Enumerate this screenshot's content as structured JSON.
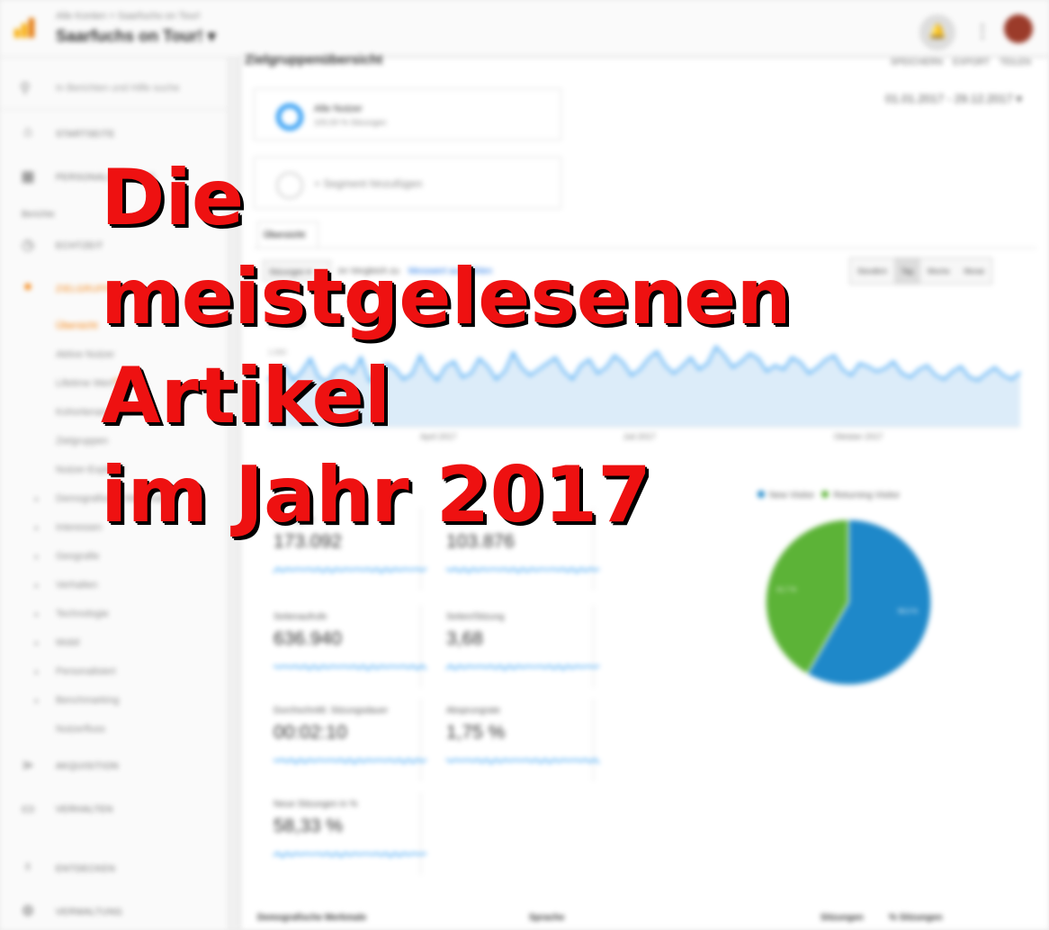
{
  "overlay": {
    "line1": "Die",
    "line2": "meistgelesenen",
    "line3": "Artikel",
    "line4": "im Jahr 2017"
  },
  "header": {
    "breadcrumb": "Alle Konten > Saarfuchs on Tour!",
    "account": "Saarfuchs on Tour!",
    "page_title": "Zielgruppenübersicht",
    "actions": [
      "SPEICHERN",
      "EXPORT",
      "TEILEN"
    ]
  },
  "sidebar": {
    "search_placeholder": "In Berichten und Hilfe suche",
    "home": "STARTSEITE",
    "custom": "PERSONALISIERUNG",
    "reports_label": "Berichte",
    "realtime": "ECHTZEIT",
    "audience": "ZIELGRUPPE",
    "audience_items": [
      {
        "label": "Übersicht",
        "active": true,
        "beta": ""
      },
      {
        "label": "Aktive Nutzer",
        "active": false,
        "beta": ""
      },
      {
        "label": "Lifetime Wert",
        "active": false,
        "beta": "BETA"
      },
      {
        "label": "Kohortenanalyse",
        "active": false,
        "beta": "BETA"
      },
      {
        "label": "Zielgruppen",
        "active": false,
        "beta": ""
      },
      {
        "label": "Nutzer-Explorer",
        "active": false,
        "beta": ""
      }
    ],
    "audience_groups": [
      "Demografische Merkmale",
      "Interessen",
      "Geografie",
      "Verhalten",
      "Technologie",
      "Mobil",
      "Personalisiert",
      "Benchmarking"
    ],
    "users_flow": "Nutzerfluss",
    "acquisition": "AKQUISITION",
    "behavior": "VERHALTEN",
    "discover": "ENTDECKEN",
    "admin": "VERWALTUNG"
  },
  "segments": {
    "all_users": "Alle Nutzer",
    "all_users_sub": "100,00 % Sitzungen",
    "add": "+ Segment hinzufügen"
  },
  "date_range": "01.01.2017 - 29.12.2017",
  "tab_label": "Übersicht",
  "metric_select": "Sitzungen",
  "compare": {
    "text": "im Vergleich zu",
    "link": "Messwert auswählen"
  },
  "granularity": [
    {
      "label": "Stündlich",
      "on": false
    },
    {
      "label": "Tag",
      "on": true
    },
    {
      "label": "Woche",
      "on": false
    },
    {
      "label": "Monat",
      "on": false
    }
  ],
  "chart_data": {
    "type": "line",
    "legend": "Sitzungen",
    "y_ticks": [
      "1.000",
      "500"
    ],
    "x_ticks": [
      "April 2017",
      "Juli 2017",
      "Oktober 2017"
    ],
    "series_color": "#2196f3",
    "values": [
      480,
      520,
      610,
      470,
      560,
      690,
      500,
      450,
      580,
      620,
      540,
      700,
      460,
      510,
      640,
      590,
      480,
      530,
      720,
      560,
      470,
      610,
      660,
      500,
      540,
      690,
      610,
      480,
      560,
      750,
      600,
      520,
      580,
      640,
      700,
      560,
      480,
      620,
      680,
      540,
      600,
      720,
      650,
      520,
      580,
      690,
      760,
      620,
      540,
      610,
      700,
      580,
      640,
      810,
      720,
      600,
      660,
      740,
      690,
      560,
      620,
      580,
      700,
      650,
      540,
      600,
      680,
      720,
      580,
      520,
      640,
      610,
      560,
      590,
      660,
      540,
      500,
      580,
      620,
      520,
      480,
      560,
      610,
      500,
      470,
      540,
      600,
      520,
      480,
      550
    ]
  },
  "pie_legend": [
    {
      "label": "New Visitor",
      "color": "#1e88c9"
    },
    {
      "label": "Returning Visitor",
      "color": "#5cb337"
    }
  ],
  "pie": {
    "new_pct": 58.3,
    "returning_pct": 41.7,
    "new_label": "58,3 %",
    "returning_label": "41,7 %"
  },
  "metrics": [
    {
      "label": "Sitzungen",
      "value": "173.092"
    },
    {
      "label": "Nutzer",
      "value": "103.876"
    },
    {
      "label": "Seitenaufrufe",
      "value": "636.940"
    },
    {
      "label": "Seiten/Sitzung",
      "value": "3,68"
    },
    {
      "label": "Durchschnittl. Sitzungsdauer",
      "value": "00:02:10"
    },
    {
      "label": "Absprungrate",
      "value": "1,75 %"
    },
    {
      "label": "Neue Sitzungen in %",
      "value": "58,33 %"
    }
  ],
  "footer": {
    "col1": "Demografische Merkmale",
    "col2": "Sprache",
    "col3": "Sitzungen",
    "col4": "% Sitzungen"
  }
}
